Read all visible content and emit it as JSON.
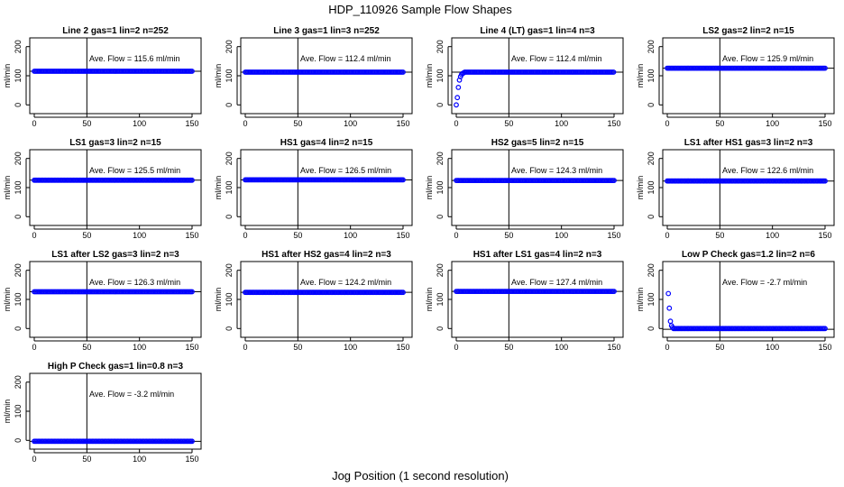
{
  "figure": {
    "title": "HDP_110926  Sample Flow Shapes",
    "xlabel": "Jog Position (1 second resolution)",
    "ylabel": "ml/min"
  },
  "colors": {
    "points": "#0000ff",
    "axes": "#000000",
    "background": "#ffffff"
  },
  "chart_data": [
    {
      "type": "scatter",
      "title": "Line 2 gas=1 lin=2 n=252",
      "annotation": "Ave. Flow =  115.6  ml/min",
      "flow": 115.6,
      "shape": "flat",
      "xlim": [
        0,
        150
      ],
      "ylim": [
        -30,
        230
      ],
      "xticks": [
        0,
        50,
        100,
        150
      ],
      "yticks": [
        0,
        100,
        200
      ],
      "vline": 50,
      "hline": 115.6
    },
    {
      "type": "scatter",
      "title": "Line 3 gas=1 lin=3 n=252",
      "annotation": "Ave. Flow =  112.4  ml/min",
      "flow": 112.4,
      "shape": "flat",
      "xlim": [
        0,
        150
      ],
      "ylim": [
        -30,
        230
      ],
      "xticks": [
        0,
        50,
        100,
        150
      ],
      "yticks": [
        0,
        100,
        200
      ],
      "vline": 50,
      "hline": 112.4
    },
    {
      "type": "scatter",
      "title": "Line 4 (LT) gas=1 lin=4 n=3",
      "annotation": "Ave. Flow =  112.4  ml/min",
      "flow": 112.4,
      "shape": "rise",
      "xlim": [
        0,
        150
      ],
      "ylim": [
        -30,
        230
      ],
      "xticks": [
        0,
        50,
        100,
        150
      ],
      "yticks": [
        0,
        100,
        200
      ],
      "vline": 50,
      "hline": 112.4
    },
    {
      "type": "scatter",
      "title": "LS2 gas=2 lin=2 n=15",
      "annotation": "Ave. Flow =  125.9  ml/min",
      "flow": 125.9,
      "shape": "flat",
      "xlim": [
        0,
        150
      ],
      "ylim": [
        -30,
        230
      ],
      "xticks": [
        0,
        50,
        100,
        150
      ],
      "yticks": [
        0,
        100,
        200
      ],
      "vline": 50,
      "hline": 125.9
    },
    {
      "type": "scatter",
      "title": "LS1 gas=3 lin=2 n=15",
      "annotation": "Ave. Flow =  125.5  ml/min",
      "flow": 125.5,
      "shape": "flat",
      "xlim": [
        0,
        150
      ],
      "ylim": [
        -30,
        230
      ],
      "xticks": [
        0,
        50,
        100,
        150
      ],
      "yticks": [
        0,
        100,
        200
      ],
      "vline": 50,
      "hline": 125.5
    },
    {
      "type": "scatter",
      "title": "HS1 gas=4 lin=2 n=15",
      "annotation": "Ave. Flow =  126.5  ml/min",
      "flow": 126.5,
      "shape": "flat",
      "xlim": [
        0,
        150
      ],
      "ylim": [
        -30,
        230
      ],
      "xticks": [
        0,
        50,
        100,
        150
      ],
      "yticks": [
        0,
        100,
        200
      ],
      "vline": 50,
      "hline": 126.5
    },
    {
      "type": "scatter",
      "title": "HS2 gas=5 lin=2 n=15",
      "annotation": "Ave. Flow =  124.3  ml/min",
      "flow": 124.3,
      "shape": "flat",
      "xlim": [
        0,
        150
      ],
      "ylim": [
        -30,
        230
      ],
      "xticks": [
        0,
        50,
        100,
        150
      ],
      "yticks": [
        0,
        100,
        200
      ],
      "vline": 50,
      "hline": 124.3
    },
    {
      "type": "scatter",
      "title": "LS1 after HS1 gas=3 lin=2 n=3",
      "annotation": "Ave. Flow =  122.6  ml/min",
      "flow": 122.6,
      "shape": "flat",
      "xlim": [
        0,
        150
      ],
      "ylim": [
        -30,
        230
      ],
      "xticks": [
        0,
        50,
        100,
        150
      ],
      "yticks": [
        0,
        100,
        200
      ],
      "vline": 50,
      "hline": 122.6
    },
    {
      "type": "scatter",
      "title": "LS1 after LS2 gas=3 lin=2 n=3",
      "annotation": "Ave. Flow =  126.3  ml/min",
      "flow": 126.3,
      "shape": "flat",
      "xlim": [
        0,
        150
      ],
      "ylim": [
        -30,
        230
      ],
      "xticks": [
        0,
        50,
        100,
        150
      ],
      "yticks": [
        0,
        100,
        200
      ],
      "vline": 50,
      "hline": 126.3
    },
    {
      "type": "scatter",
      "title": "HS1 after HS2 gas=4 lin=2 n=3",
      "annotation": "Ave. Flow =  124.2  ml/min",
      "flow": 124.2,
      "shape": "flat",
      "xlim": [
        0,
        150
      ],
      "ylim": [
        -30,
        230
      ],
      "xticks": [
        0,
        50,
        100,
        150
      ],
      "yticks": [
        0,
        100,
        200
      ],
      "vline": 50,
      "hline": 124.2
    },
    {
      "type": "scatter",
      "title": "HS1 after LS1 gas=4 lin=2 n=3",
      "annotation": "Ave. Flow =  127.4  ml/min",
      "flow": 127.4,
      "shape": "flat",
      "xlim": [
        0,
        150
      ],
      "ylim": [
        -30,
        230
      ],
      "xticks": [
        0,
        50,
        100,
        150
      ],
      "yticks": [
        0,
        100,
        200
      ],
      "vline": 50,
      "hline": 127.4
    },
    {
      "type": "scatter",
      "title": "Low P Check gas=1.2 lin=2 n=6",
      "annotation": "Ave. Flow =  -2.7  ml/min",
      "flow": -2.7,
      "shape": "decay",
      "xlim": [
        0,
        150
      ],
      "ylim": [
        -30,
        230
      ],
      "xticks": [
        0,
        50,
        100,
        150
      ],
      "yticks": [
        0,
        100,
        200
      ],
      "vline": 50,
      "hline": -2.7
    },
    {
      "type": "scatter",
      "title": "High P Check gas=1 lin=0.8 n=3",
      "annotation": "Ave. Flow =  -3.2  ml/min",
      "flow": -3.2,
      "shape": "flat",
      "xlim": [
        0,
        150
      ],
      "ylim": [
        -30,
        230
      ],
      "xticks": [
        0,
        50,
        100,
        150
      ],
      "yticks": [
        0,
        100,
        200
      ],
      "vline": 50,
      "hline": -3.2
    }
  ]
}
